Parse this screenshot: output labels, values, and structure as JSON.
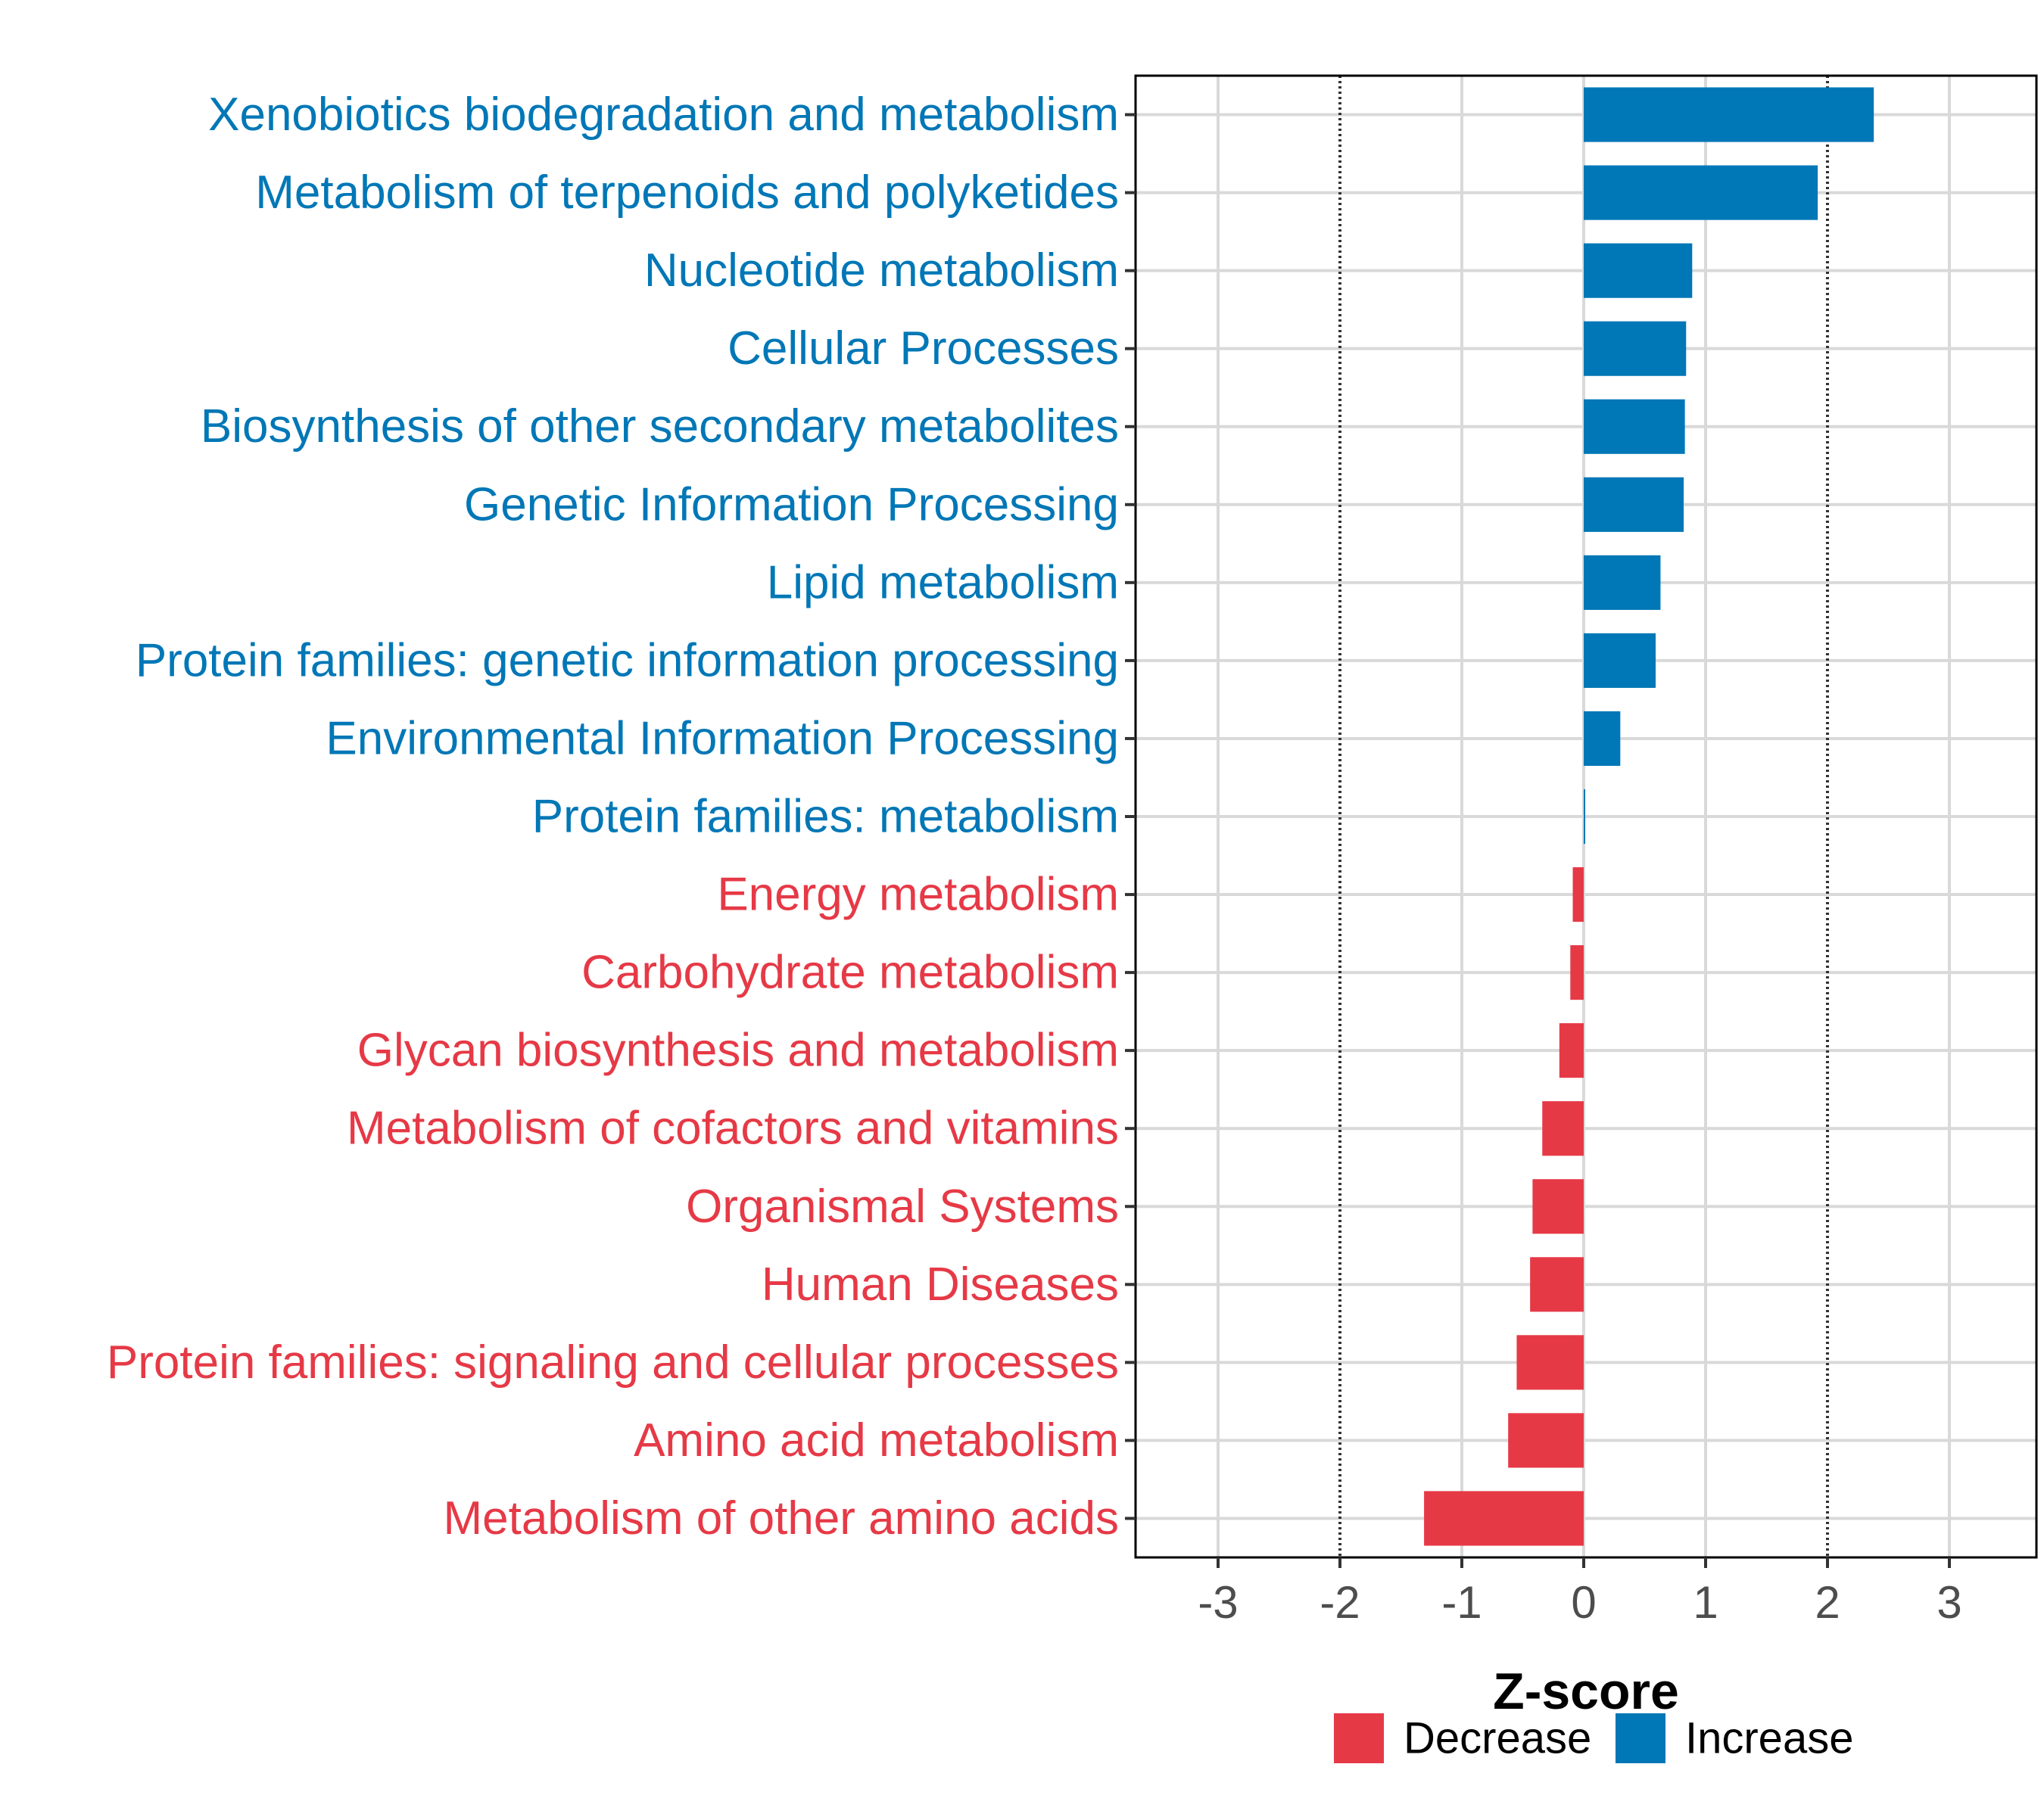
{
  "chart_data": {
    "type": "bar",
    "orientation": "horizontal",
    "title": "",
    "xlabel": "Z-score",
    "ylabel": "",
    "xlim": [
      -3.7,
      3.7
    ],
    "xticks": [
      -3,
      -2,
      -1,
      0,
      1,
      2,
      3
    ],
    "xtick_labels": [
      "-3",
      "-2",
      "-1",
      "0",
      "1",
      "2",
      "3"
    ],
    "reference_lines": [
      -2,
      2
    ],
    "grid": true,
    "legend_position": "bottom",
    "colors": {
      "Decrease": "#E63946",
      "Increase": "#0077B6"
    },
    "legend": [
      {
        "label": "Decrease",
        "color": "#E63946"
      },
      {
        "label": "Increase",
        "color": "#0077B6"
      }
    ],
    "categories": [
      "Xenobiotics biodegradation and metabolism",
      "Metabolism of terpenoids and polyketides",
      "Nucleotide metabolism",
      "Cellular Processes",
      "Biosynthesis of other secondary metabolites",
      "Genetic Information Processing",
      "Lipid metabolism",
      "Protein families: genetic information processing",
      "Environmental Information Processing",
      "Protein families: metabolism",
      "Energy metabolism",
      "Carbohydrate metabolism",
      "Glycan biosynthesis and metabolism",
      "Metabolism of cofactors and vitamins",
      "Organismal Systems",
      "Human Diseases",
      "Protein families: signaling and cellular processes",
      "Amino acid metabolism",
      "Metabolism of other amino acids"
    ],
    "values": [
      2.38,
      1.92,
      0.89,
      0.84,
      0.83,
      0.82,
      0.63,
      0.59,
      0.3,
      0.01,
      -0.09,
      -0.11,
      -0.2,
      -0.34,
      -0.42,
      -0.44,
      -0.55,
      -0.62,
      -1.31
    ],
    "groups": [
      "Increase",
      "Increase",
      "Increase",
      "Increase",
      "Increase",
      "Increase",
      "Increase",
      "Increase",
      "Increase",
      "Increase",
      "Decrease",
      "Decrease",
      "Decrease",
      "Decrease",
      "Decrease",
      "Decrease",
      "Decrease",
      "Decrease",
      "Decrease"
    ]
  }
}
